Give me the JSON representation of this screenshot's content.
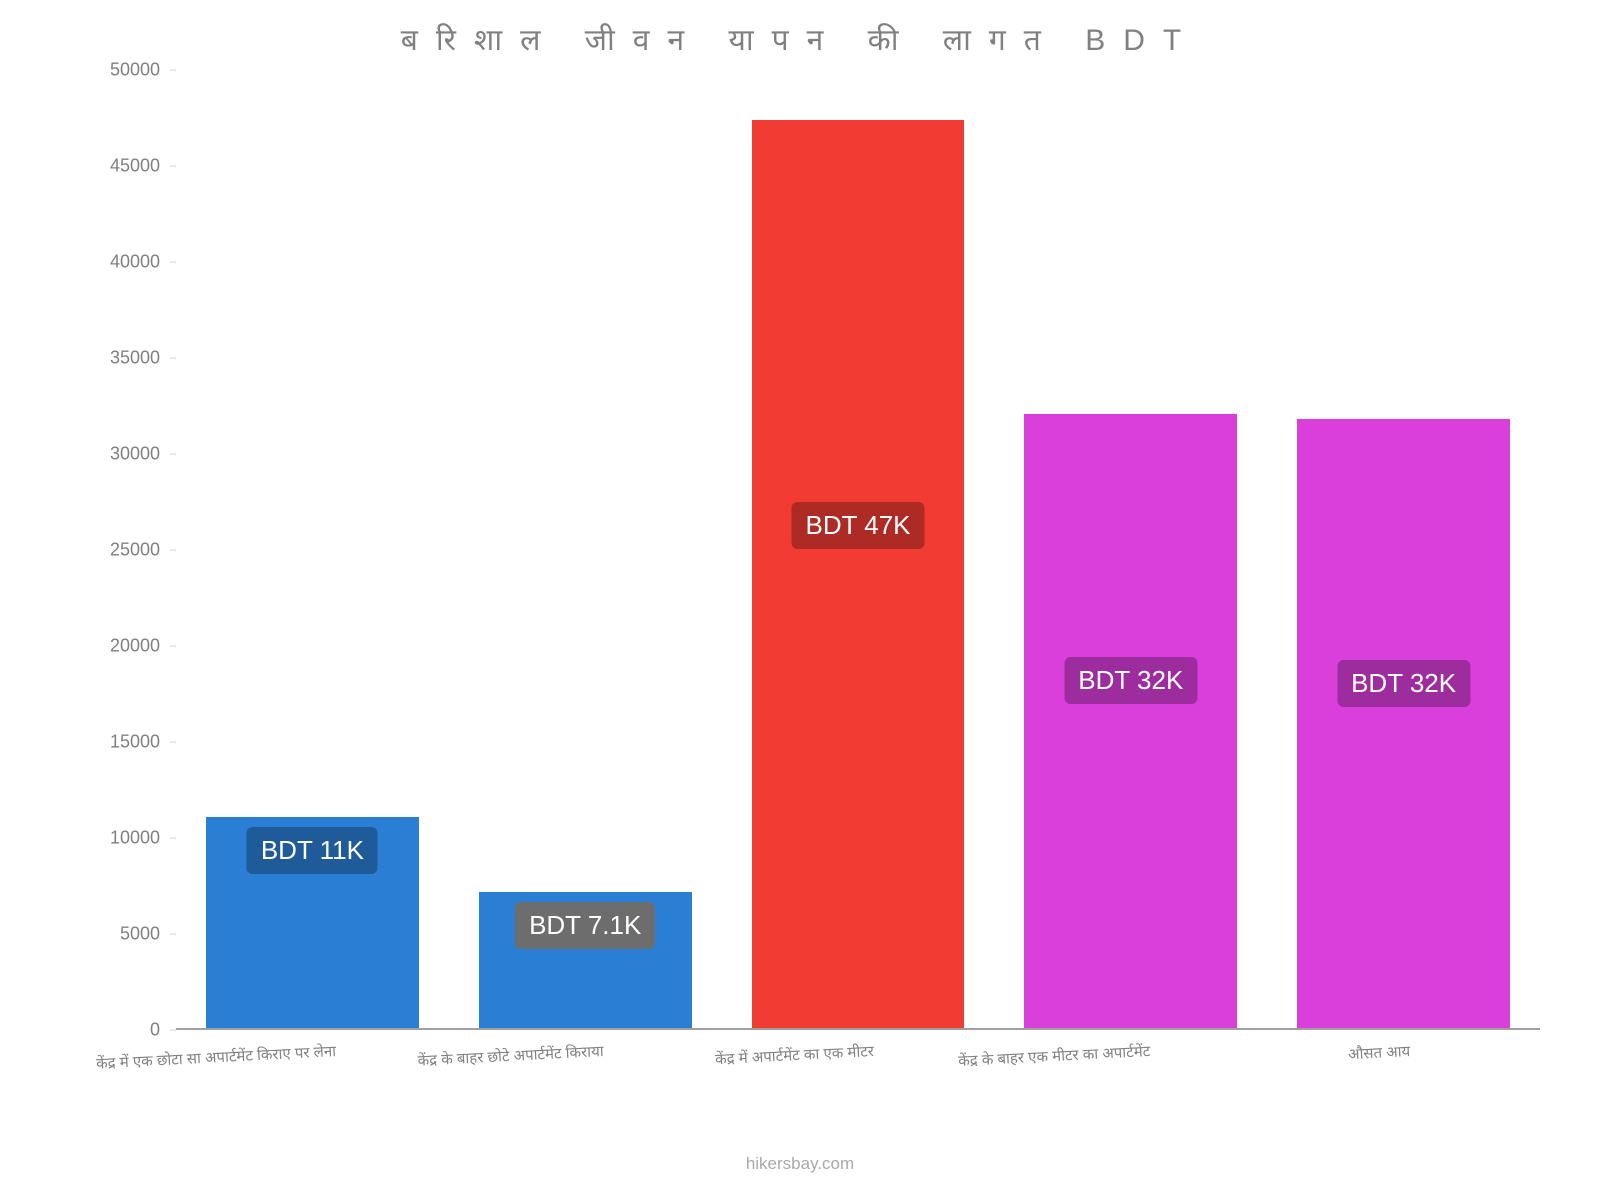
{
  "chart": {
    "type": "bar",
    "title": "बरिशाल जीवन यापन की लागत BDT",
    "title_fontsize": 30,
    "title_color": "#808080",
    "background_color": "#ffffff",
    "attribution": "hikersbay.com",
    "attribution_color": "#a9a9a9",
    "y": {
      "min": 0,
      "max": 50000,
      "step": 5000,
      "ticks": [
        0,
        5000,
        10000,
        15000,
        20000,
        25000,
        30000,
        35000,
        40000,
        45000,
        50000
      ],
      "tick_color": "#808080",
      "tick_fontsize": 18
    },
    "x_label_color": "#808080",
    "x_label_fontsize": 15,
    "bar_width_ratio": 0.78,
    "bars": [
      {
        "category": "केंद्र में एक छोटा सा अपार्टमेंट किराए पर लेना",
        "value": 11000,
        "bar_color": "#2a7fd5",
        "badge_text": "BDT 11K",
        "badge_bg": "#1f5b99",
        "badge_text_color": "#ffffff"
      },
      {
        "category": "केंद्र के बाहर छोटे अपार्टमेंट किराया",
        "value": 7100,
        "bar_color": "#2a7fd5",
        "badge_text": "BDT 7.1K",
        "badge_bg": "#6d6d6d",
        "badge_text_color": "#ffffff"
      },
      {
        "category": "केंद्र में अपार्टमेंट का एक मीटर",
        "value": 47300,
        "bar_color": "#f23b33",
        "badge_text": "BDT 47K",
        "badge_bg": "#ae2a24",
        "badge_text_color": "#ffffff"
      },
      {
        "category": "केंद्र के बाहर एक मीटर का अपार्टमेंट",
        "value": 32000,
        "bar_color": "#da3fdc",
        "badge_text": "BDT 32K",
        "badge_bg": "#9d2d9e",
        "badge_text_color": "#ffffff"
      },
      {
        "category": "औसत आय",
        "value": 31700,
        "bar_color": "#da3fdc",
        "badge_text": "BDT 32K",
        "badge_bg": "#9d2d9e",
        "badge_text_color": "#ffffff"
      }
    ]
  }
}
